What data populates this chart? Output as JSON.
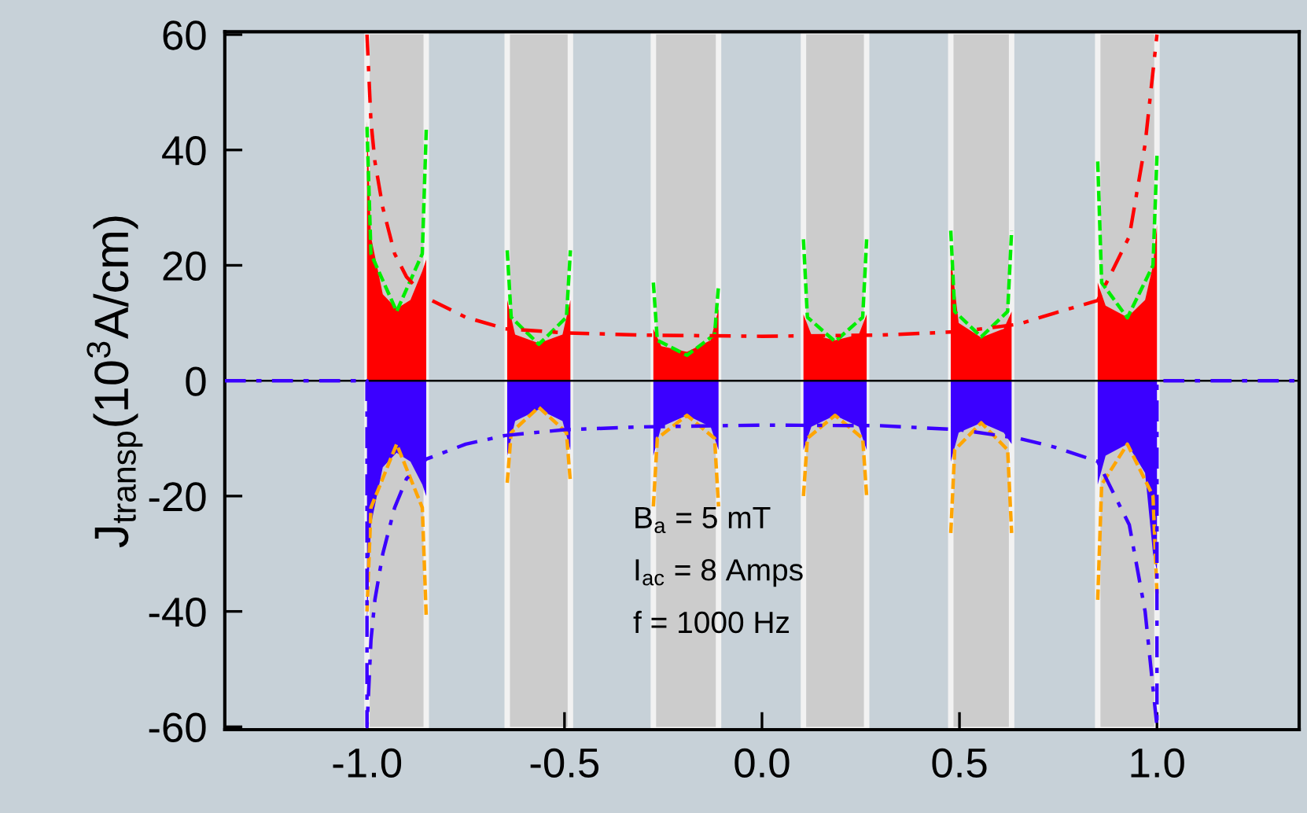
{
  "chart_data": {
    "type": "line",
    "ylabel": "J$_{transp}$(10$^{3}$A/cm)",
    "xlim": [
      -1.36,
      1.36
    ],
    "ylim": [
      -60.5,
      60.5
    ],
    "xticks": [
      {
        "value": -1.0,
        "label": "-1.0"
      },
      {
        "value": -0.5,
        "label": "-0.5"
      },
      {
        "value": 0.0,
        "label": "0.0"
      },
      {
        "value": 0.5,
        "label": "0.5"
      },
      {
        "value": 1.0,
        "label": "1.0"
      }
    ],
    "yticks": [
      {
        "value": -60,
        "label": "-60"
      },
      {
        "value": -40,
        "label": "-40"
      },
      {
        "value": -20,
        "label": "-20"
      },
      0,
      20,
      40,
      60
    ],
    "grid": false,
    "legend": false,
    "bands": [
      {
        "axis": "x",
        "from": -1.0,
        "to": -0.85,
        "color": "#cccccc"
      },
      {
        "axis": "x",
        "from": -0.645,
        "to": -0.485,
        "color": "#cccccc"
      },
      {
        "axis": "x",
        "from": -0.275,
        "to": -0.11,
        "color": "#cccccc"
      },
      {
        "axis": "x",
        "from": 0.105,
        "to": 0.265,
        "color": "#cccccc"
      },
      {
        "axis": "x",
        "from": 0.478,
        "to": 0.632,
        "color": "#cccccc"
      },
      {
        "axis": "x",
        "from": 0.85,
        "to": 1.0,
        "color": "#cccccc"
      }
    ],
    "ref_lines": [
      {
        "axis": "y",
        "value": 0,
        "color": "#000000",
        "line_style": "solid"
      }
    ],
    "series": [
      {
        "type": "area",
        "color": "#ff0000",
        "x": [
          -1.0,
          -1.0,
          -0.99,
          -0.96,
          -0.925,
          -0.89,
          -0.86,
          -0.85,
          -0.85,
          -0.645,
          -0.645,
          -0.625,
          -0.565,
          -0.505,
          -0.485,
          -0.485,
          -0.275,
          -0.275,
          -0.255,
          -0.19,
          -0.13,
          -0.11,
          -0.11,
          0.105,
          0.105,
          0.125,
          0.185,
          0.245,
          0.265,
          0.265,
          0.478,
          0.478,
          0.498,
          0.555,
          0.612,
          0.632,
          0.632,
          0.85,
          0.85,
          0.87,
          0.925,
          0.97,
          0.99,
          1.0,
          1.0
        ],
        "values": [
          0,
          45,
          25,
          15,
          12.5,
          14,
          19,
          21,
          0,
          0,
          14,
          8,
          6.5,
          8,
          14,
          0,
          0,
          9,
          6,
          5,
          7,
          12.5,
          0,
          0,
          11.5,
          8,
          7,
          8,
          11.5,
          0,
          0,
          21.7,
          10,
          7.5,
          9,
          12,
          0,
          0,
          17,
          13,
          11,
          14,
          20,
          27,
          0
        ]
      },
      {
        "type": "area",
        "color": "#3b00ff",
        "x": [
          -1.0,
          -1.0,
          -0.99,
          -0.96,
          -0.925,
          -0.89,
          -0.86,
          -0.85,
          -0.85,
          -0.645,
          -0.645,
          -0.625,
          -0.565,
          -0.505,
          -0.485,
          -0.485,
          -0.275,
          -0.275,
          -0.255,
          -0.19,
          -0.13,
          -0.11,
          -0.11,
          0.105,
          0.105,
          0.125,
          0.185,
          0.245,
          0.265,
          0.265,
          0.478,
          0.478,
          0.498,
          0.555,
          0.612,
          0.632,
          0.632,
          0.85,
          0.85,
          0.87,
          0.925,
          0.97,
          0.99,
          1.0,
          1.0
        ],
        "values": [
          0,
          -42,
          -25,
          -15,
          -12.5,
          -14,
          -18,
          -20,
          0,
          0,
          -13,
          -7,
          -5,
          -7,
          -12,
          0,
          0,
          -13,
          -8,
          -6,
          -8,
          -12,
          0,
          0,
          -12,
          -8,
          -6,
          -8,
          -12,
          0,
          0,
          -14,
          -9,
          -7.3,
          -9,
          -11,
          0,
          0,
          -18,
          -13,
          -11,
          -16,
          -30,
          -33,
          0
        ]
      },
      {
        "color": "#00ee00",
        "line_style": "dashed",
        "x": [
          -1.0,
          -0.99,
          -0.925,
          -0.86,
          -0.85,
          -0.75,
          -0.645,
          -0.635,
          -0.565,
          -0.495,
          -0.485,
          -0.38,
          -0.275,
          -0.265,
          -0.19,
          -0.12,
          -0.11,
          0.0,
          0.105,
          0.115,
          0.185,
          0.255,
          0.265,
          0.37,
          0.478,
          0.488,
          0.555,
          0.622,
          0.632,
          0.74,
          0.85,
          0.86,
          0.925,
          0.99,
          1.0
        ],
        "values": [
          44,
          22,
          12,
          22,
          43.5,
          null,
          22.6,
          11,
          6.3,
          11,
          22.6,
          null,
          17,
          7,
          4.4,
          8,
          16.5,
          null,
          24.5,
          11,
          6.8,
          11,
          24.5,
          null,
          26,
          12,
          7.6,
          12,
          26,
          null,
          38,
          17,
          10.9,
          20,
          39
        ]
      },
      {
        "color": "#ffa500",
        "line_style": "dashed",
        "x": [
          -1.0,
          -0.99,
          -0.925,
          -0.86,
          -0.85,
          -0.75,
          -0.645,
          -0.635,
          -0.565,
          -0.495,
          -0.485,
          -0.38,
          -0.275,
          -0.265,
          -0.19,
          -0.12,
          -0.11,
          0.0,
          0.105,
          0.115,
          0.185,
          0.255,
          0.265,
          0.37,
          0.478,
          0.488,
          0.555,
          0.622,
          0.632,
          0.74,
          0.85,
          0.86,
          0.925,
          0.99,
          1.0
        ],
        "values": [
          -40,
          -22,
          -11,
          -22,
          -41,
          null,
          -17.7,
          -9,
          -4.6,
          -9,
          -17.7,
          null,
          -21.8,
          -10,
          -6,
          -10,
          -21.8,
          null,
          -20,
          -10,
          -6,
          -10,
          -20,
          null,
          -26.4,
          -12,
          -7.3,
          -12,
          -26.4,
          null,
          -38,
          -18,
          -11,
          -20,
          -37
        ]
      },
      {
        "color": "#ff0000",
        "line_style": "dashdot",
        "x": [
          -1.0,
          -0.99,
          -0.98,
          -0.96,
          -0.93,
          -0.9,
          -0.85,
          -0.75,
          -0.65,
          -0.5,
          -0.3,
          0.0,
          0.3,
          0.5,
          0.65,
          0.74,
          0.85,
          0.93,
          0.97,
          1.0
        ],
        "values": [
          60,
          45,
          38,
          30,
          22,
          18,
          14.4,
          11,
          9,
          8.3,
          7.9,
          7.7,
          7.9,
          8.5,
          9.8,
          11.7,
          13.9,
          25,
          41,
          60
        ]
      },
      {
        "color": "#3b00ff",
        "line_style": "dashdot",
        "x": [
          -1.36,
          -1.0,
          -1.0,
          -0.99,
          -0.98,
          -0.96,
          -0.93,
          -0.9,
          -0.85,
          -0.75,
          -0.65,
          -0.5,
          -0.3,
          0.0,
          0.3,
          0.5,
          0.65,
          0.74,
          0.85,
          0.93,
          0.97,
          1.0,
          1.0,
          1.36
        ],
        "values": [
          0,
          0,
          -60,
          -45,
          -38,
          -30,
          -22,
          -17,
          -13.6,
          -11,
          -9.5,
          -8.5,
          -8,
          -7.7,
          -7.8,
          -8.5,
          -10,
          -11.5,
          -14,
          -25,
          -40,
          -60,
          0,
          0
        ]
      }
    ],
    "annotations": [
      "B$_{a}$ = 5 mT",
      "I$_{ac}$ = 8 Amps",
      "f = 1000 Hz"
    ]
  }
}
